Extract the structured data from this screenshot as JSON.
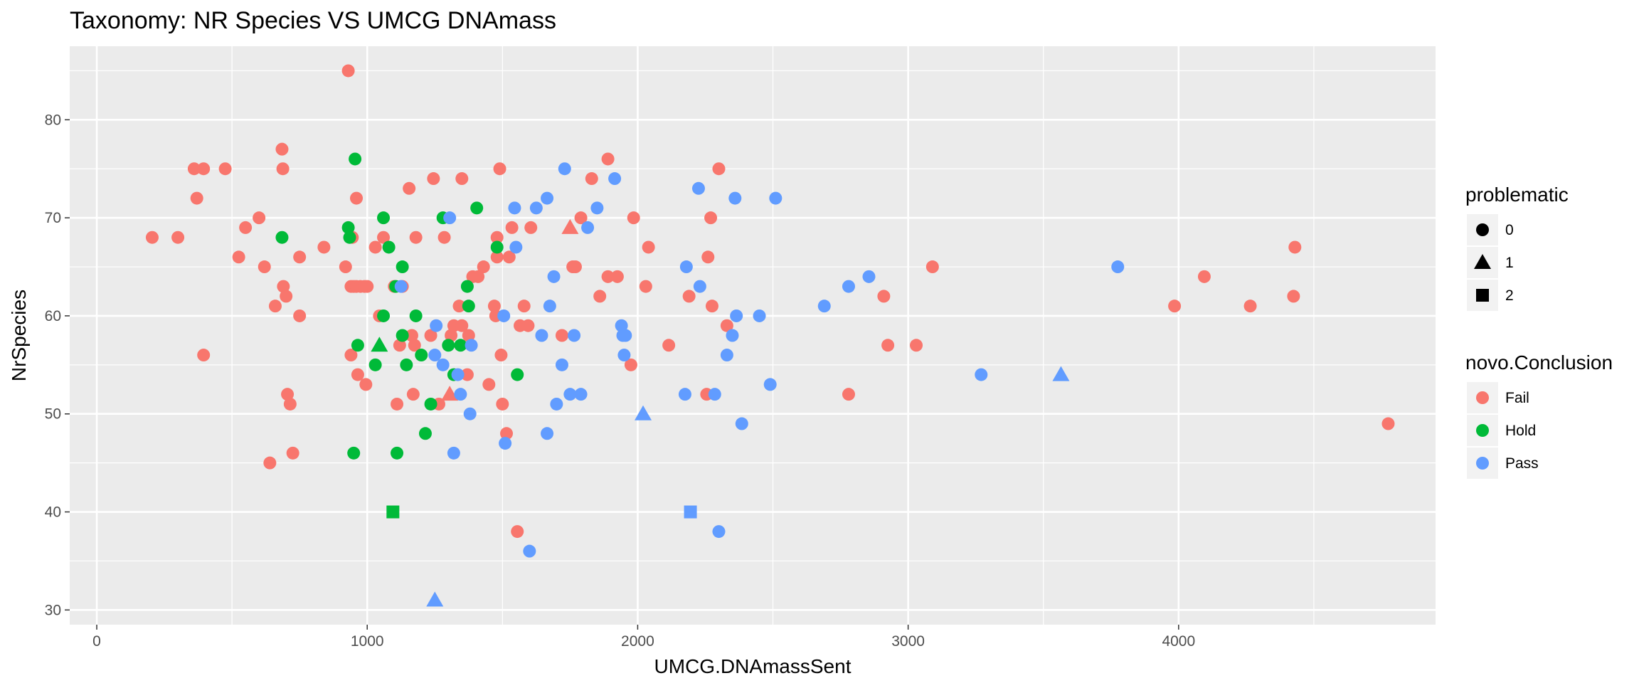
{
  "chart_data": {
    "type": "scatter",
    "title": "Taxonomy: NR Species VS UMCG DNAmass",
    "xlabel": "UMCG.DNAmassSent",
    "ylabel": "NrSpecies",
    "xlim": [
      -100,
      4950
    ],
    "ylim": [
      28.5,
      87.5
    ],
    "x_ticks": [
      0,
      1000,
      2000,
      3000,
      4000
    ],
    "y_ticks": [
      30,
      40,
      50,
      60,
      70,
      80
    ],
    "grid": true,
    "legend_placement": "right",
    "colors": {
      "Fail": "#F8766D",
      "Hold": "#00BA38",
      "Pass": "#619CFF",
      "panel": "#EBEBEB",
      "grid": "#FFFFFF"
    },
    "legends": [
      {
        "title": "problematic",
        "kind": "shape",
        "entries": [
          {
            "label": "0",
            "shape": "circle"
          },
          {
            "label": "1",
            "shape": "triangle"
          },
          {
            "label": "2",
            "shape": "square"
          }
        ]
      },
      {
        "title": "novo.Conclusion",
        "kind": "color",
        "entries": [
          {
            "label": "Fail"
          },
          {
            "label": "Hold"
          },
          {
            "label": "Pass"
          }
        ]
      }
    ],
    "points": [
      {
        "x": 930,
        "y": 85,
        "c": "Fail",
        "p": 0
      },
      {
        "x": 205,
        "y": 68,
        "c": "Fail",
        "p": 0
      },
      {
        "x": 300,
        "y": 68,
        "c": "Fail",
        "p": 0
      },
      {
        "x": 360,
        "y": 75,
        "c": "Fail",
        "p": 0
      },
      {
        "x": 395,
        "y": 75,
        "c": "Fail",
        "p": 0
      },
      {
        "x": 475,
        "y": 75,
        "c": "Fail",
        "p": 0
      },
      {
        "x": 370,
        "y": 72,
        "c": "Fail",
        "p": 0
      },
      {
        "x": 395,
        "y": 56,
        "c": "Fail",
        "p": 0
      },
      {
        "x": 525,
        "y": 66,
        "c": "Fail",
        "p": 0
      },
      {
        "x": 550,
        "y": 69,
        "c": "Fail",
        "p": 0
      },
      {
        "x": 600,
        "y": 70,
        "c": "Fail",
        "p": 0
      },
      {
        "x": 620,
        "y": 65,
        "c": "Fail",
        "p": 0
      },
      {
        "x": 640,
        "y": 45,
        "c": "Fail",
        "p": 0
      },
      {
        "x": 660,
        "y": 61,
        "c": "Fail",
        "p": 0
      },
      {
        "x": 685,
        "y": 77,
        "c": "Fail",
        "p": 0
      },
      {
        "x": 688,
        "y": 75,
        "c": "Fail",
        "p": 0
      },
      {
        "x": 690,
        "y": 63,
        "c": "Fail",
        "p": 0
      },
      {
        "x": 700,
        "y": 62,
        "c": "Fail",
        "p": 0
      },
      {
        "x": 705,
        "y": 52,
        "c": "Fail",
        "p": 0
      },
      {
        "x": 715,
        "y": 51,
        "c": "Fail",
        "p": 0
      },
      {
        "x": 725,
        "y": 46,
        "c": "Fail",
        "p": 0
      },
      {
        "x": 750,
        "y": 66,
        "c": "Fail",
        "p": 0
      },
      {
        "x": 750,
        "y": 60,
        "c": "Fail",
        "p": 0
      },
      {
        "x": 840,
        "y": 67,
        "c": "Fail",
        "p": 0
      },
      {
        "x": 920,
        "y": 65,
        "c": "Fail",
        "p": 0
      },
      {
        "x": 940,
        "y": 63,
        "c": "Fail",
        "p": 0
      },
      {
        "x": 950,
        "y": 63,
        "c": "Fail",
        "p": 0
      },
      {
        "x": 960,
        "y": 63,
        "c": "Fail",
        "p": 0
      },
      {
        "x": 975,
        "y": 63,
        "c": "Fail",
        "p": 0
      },
      {
        "x": 990,
        "y": 63,
        "c": "Fail",
        "p": 0
      },
      {
        "x": 1000,
        "y": 63,
        "c": "Fail",
        "p": 0
      },
      {
        "x": 945,
        "y": 68,
        "c": "Fail",
        "p": 0
      },
      {
        "x": 960,
        "y": 72,
        "c": "Fail",
        "p": 0
      },
      {
        "x": 940,
        "y": 56,
        "c": "Fail",
        "p": 0
      },
      {
        "x": 965,
        "y": 54,
        "c": "Fail",
        "p": 0
      },
      {
        "x": 995,
        "y": 53,
        "c": "Fail",
        "p": 0
      },
      {
        "x": 1030,
        "y": 67,
        "c": "Fail",
        "p": 0
      },
      {
        "x": 1045,
        "y": 60,
        "c": "Fail",
        "p": 0
      },
      {
        "x": 1060,
        "y": 68,
        "c": "Fail",
        "p": 0
      },
      {
        "x": 1100,
        "y": 63,
        "c": "Fail",
        "p": 0
      },
      {
        "x": 1110,
        "y": 51,
        "c": "Fail",
        "p": 0
      },
      {
        "x": 1120,
        "y": 57,
        "c": "Fail",
        "p": 0
      },
      {
        "x": 1130,
        "y": 63,
        "c": "Fail",
        "p": 0
      },
      {
        "x": 1155,
        "y": 73,
        "c": "Fail",
        "p": 0
      },
      {
        "x": 1165,
        "y": 58,
        "c": "Fail",
        "p": 0
      },
      {
        "x": 1170,
        "y": 52,
        "c": "Fail",
        "p": 0
      },
      {
        "x": 1175,
        "y": 57,
        "c": "Fail",
        "p": 0
      },
      {
        "x": 1180,
        "y": 68,
        "c": "Fail",
        "p": 0
      },
      {
        "x": 1235,
        "y": 58,
        "c": "Fail",
        "p": 0
      },
      {
        "x": 1245,
        "y": 74,
        "c": "Fail",
        "p": 0
      },
      {
        "x": 1265,
        "y": 51,
        "c": "Fail",
        "p": 0
      },
      {
        "x": 1285,
        "y": 68,
        "c": "Fail",
        "p": 0
      },
      {
        "x": 1310,
        "y": 58,
        "c": "Fail",
        "p": 0
      },
      {
        "x": 1320,
        "y": 59,
        "c": "Fail",
        "p": 0
      },
      {
        "x": 1340,
        "y": 61,
        "c": "Fail",
        "p": 0
      },
      {
        "x": 1350,
        "y": 59,
        "c": "Fail",
        "p": 0
      },
      {
        "x": 1350,
        "y": 74,
        "c": "Fail",
        "p": 0
      },
      {
        "x": 1375,
        "y": 58,
        "c": "Fail",
        "p": 0
      },
      {
        "x": 1370,
        "y": 54,
        "c": "Fail",
        "p": 0
      },
      {
        "x": 1390,
        "y": 64,
        "c": "Fail",
        "p": 0
      },
      {
        "x": 1410,
        "y": 64,
        "c": "Fail",
        "p": 0
      },
      {
        "x": 1430,
        "y": 65,
        "c": "Fail",
        "p": 0
      },
      {
        "x": 1450,
        "y": 53,
        "c": "Fail",
        "p": 0
      },
      {
        "x": 1470,
        "y": 61,
        "c": "Fail",
        "p": 0
      },
      {
        "x": 1475,
        "y": 60,
        "c": "Fail",
        "p": 0
      },
      {
        "x": 1480,
        "y": 66,
        "c": "Fail",
        "p": 0
      },
      {
        "x": 1480,
        "y": 68,
        "c": "Fail",
        "p": 0
      },
      {
        "x": 1490,
        "y": 75,
        "c": "Fail",
        "p": 0
      },
      {
        "x": 1495,
        "y": 56,
        "c": "Fail",
        "p": 0
      },
      {
        "x": 1500,
        "y": 51,
        "c": "Fail",
        "p": 0
      },
      {
        "x": 1515,
        "y": 48,
        "c": "Fail",
        "p": 0
      },
      {
        "x": 1525,
        "y": 66,
        "c": "Fail",
        "p": 0
      },
      {
        "x": 1535,
        "y": 69,
        "c": "Fail",
        "p": 0
      },
      {
        "x": 1555,
        "y": 38,
        "c": "Fail",
        "p": 0
      },
      {
        "x": 1565,
        "y": 59,
        "c": "Fail",
        "p": 0
      },
      {
        "x": 1580,
        "y": 61,
        "c": "Fail",
        "p": 0
      },
      {
        "x": 1595,
        "y": 59,
        "c": "Fail",
        "p": 0
      },
      {
        "x": 1605,
        "y": 69,
        "c": "Fail",
        "p": 0
      },
      {
        "x": 1720,
        "y": 58,
        "c": "Fail",
        "p": 0
      },
      {
        "x": 1760,
        "y": 65,
        "c": "Fail",
        "p": 0
      },
      {
        "x": 1770,
        "y": 65,
        "c": "Fail",
        "p": 0
      },
      {
        "x": 1790,
        "y": 70,
        "c": "Fail",
        "p": 0
      },
      {
        "x": 1830,
        "y": 74,
        "c": "Fail",
        "p": 0
      },
      {
        "x": 1860,
        "y": 62,
        "c": "Fail",
        "p": 0
      },
      {
        "x": 1890,
        "y": 76,
        "c": "Fail",
        "p": 0
      },
      {
        "x": 1890,
        "y": 64,
        "c": "Fail",
        "p": 0
      },
      {
        "x": 1925,
        "y": 64,
        "c": "Fail",
        "p": 0
      },
      {
        "x": 1975,
        "y": 55,
        "c": "Fail",
        "p": 0
      },
      {
        "x": 1985,
        "y": 70,
        "c": "Fail",
        "p": 0
      },
      {
        "x": 2030,
        "y": 63,
        "c": "Fail",
        "p": 0
      },
      {
        "x": 2040,
        "y": 67,
        "c": "Fail",
        "p": 0
      },
      {
        "x": 2115,
        "y": 57,
        "c": "Fail",
        "p": 0
      },
      {
        "x": 2190,
        "y": 62,
        "c": "Fail",
        "p": 0
      },
      {
        "x": 2255,
        "y": 52,
        "c": "Fail",
        "p": 0
      },
      {
        "x": 2260,
        "y": 66,
        "c": "Fail",
        "p": 0
      },
      {
        "x": 2270,
        "y": 70,
        "c": "Fail",
        "p": 0
      },
      {
        "x": 2275,
        "y": 61,
        "c": "Fail",
        "p": 0
      },
      {
        "x": 2300,
        "y": 75,
        "c": "Fail",
        "p": 0
      },
      {
        "x": 2330,
        "y": 59,
        "c": "Fail",
        "p": 0
      },
      {
        "x": 2780,
        "y": 52,
        "c": "Fail",
        "p": 0
      },
      {
        "x": 2910,
        "y": 62,
        "c": "Fail",
        "p": 0
      },
      {
        "x": 2925,
        "y": 57,
        "c": "Fail",
        "p": 0
      },
      {
        "x": 3030,
        "y": 57,
        "c": "Fail",
        "p": 0
      },
      {
        "x": 3090,
        "y": 65,
        "c": "Fail",
        "p": 0
      },
      {
        "x": 3985,
        "y": 61,
        "c": "Fail",
        "p": 0
      },
      {
        "x": 4095,
        "y": 64,
        "c": "Fail",
        "p": 0
      },
      {
        "x": 4265,
        "y": 61,
        "c": "Fail",
        "p": 0
      },
      {
        "x": 4425,
        "y": 62,
        "c": "Fail",
        "p": 0
      },
      {
        "x": 4430,
        "y": 67,
        "c": "Fail",
        "p": 0
      },
      {
        "x": 4775,
        "y": 49,
        "c": "Fail",
        "p": 0
      },
      {
        "x": 1750,
        "y": 69,
        "c": "Fail",
        "p": 1
      },
      {
        "x": 1305,
        "y": 52,
        "c": "Fail",
        "p": 1
      },
      {
        "x": 685,
        "y": 68,
        "c": "Hold",
        "p": 0
      },
      {
        "x": 930,
        "y": 69,
        "c": "Hold",
        "p": 0
      },
      {
        "x": 935,
        "y": 68,
        "c": "Hold",
        "p": 0
      },
      {
        "x": 955,
        "y": 76,
        "c": "Hold",
        "p": 0
      },
      {
        "x": 965,
        "y": 57,
        "c": "Hold",
        "p": 0
      },
      {
        "x": 950,
        "y": 46,
        "c": "Hold",
        "p": 0
      },
      {
        "x": 1030,
        "y": 55,
        "c": "Hold",
        "p": 0
      },
      {
        "x": 1060,
        "y": 70,
        "c": "Hold",
        "p": 0
      },
      {
        "x": 1060,
        "y": 60,
        "c": "Hold",
        "p": 0
      },
      {
        "x": 1080,
        "y": 67,
        "c": "Hold",
        "p": 0
      },
      {
        "x": 1105,
        "y": 63,
        "c": "Hold",
        "p": 0
      },
      {
        "x": 1110,
        "y": 46,
        "c": "Hold",
        "p": 0
      },
      {
        "x": 1130,
        "y": 58,
        "c": "Hold",
        "p": 0
      },
      {
        "x": 1130,
        "y": 65,
        "c": "Hold",
        "p": 0
      },
      {
        "x": 1145,
        "y": 55,
        "c": "Hold",
        "p": 0
      },
      {
        "x": 1180,
        "y": 60,
        "c": "Hold",
        "p": 0
      },
      {
        "x": 1200,
        "y": 56,
        "c": "Hold",
        "p": 0
      },
      {
        "x": 1215,
        "y": 48,
        "c": "Hold",
        "p": 0
      },
      {
        "x": 1235,
        "y": 51,
        "c": "Hold",
        "p": 0
      },
      {
        "x": 1280,
        "y": 70,
        "c": "Hold",
        "p": 0
      },
      {
        "x": 1300,
        "y": 57,
        "c": "Hold",
        "p": 0
      },
      {
        "x": 1320,
        "y": 54,
        "c": "Hold",
        "p": 0
      },
      {
        "x": 1345,
        "y": 57,
        "c": "Hold",
        "p": 0
      },
      {
        "x": 1370,
        "y": 63,
        "c": "Hold",
        "p": 0
      },
      {
        "x": 1375,
        "y": 61,
        "c": "Hold",
        "p": 0
      },
      {
        "x": 1405,
        "y": 71,
        "c": "Hold",
        "p": 0
      },
      {
        "x": 1480,
        "y": 67,
        "c": "Hold",
        "p": 0
      },
      {
        "x": 1555,
        "y": 54,
        "c": "Hold",
        "p": 0
      },
      {
        "x": 1045,
        "y": 57,
        "c": "Hold",
        "p": 1
      },
      {
        "x": 1095,
        "y": 40,
        "c": "Hold",
        "p": 2
      },
      {
        "x": 1125,
        "y": 63,
        "c": "Pass",
        "p": 0
      },
      {
        "x": 1250,
        "y": 56,
        "c": "Pass",
        "p": 0
      },
      {
        "x": 1255,
        "y": 59,
        "c": "Pass",
        "p": 0
      },
      {
        "x": 1280,
        "y": 55,
        "c": "Pass",
        "p": 0
      },
      {
        "x": 1305,
        "y": 70,
        "c": "Pass",
        "p": 0
      },
      {
        "x": 1320,
        "y": 46,
        "c": "Pass",
        "p": 0
      },
      {
        "x": 1335,
        "y": 54,
        "c": "Pass",
        "p": 0
      },
      {
        "x": 1345,
        "y": 52,
        "c": "Pass",
        "p": 0
      },
      {
        "x": 1380,
        "y": 50,
        "c": "Pass",
        "p": 0
      },
      {
        "x": 1385,
        "y": 57,
        "c": "Pass",
        "p": 0
      },
      {
        "x": 1505,
        "y": 60,
        "c": "Pass",
        "p": 0
      },
      {
        "x": 1510,
        "y": 47,
        "c": "Pass",
        "p": 0
      },
      {
        "x": 1545,
        "y": 71,
        "c": "Pass",
        "p": 0
      },
      {
        "x": 1550,
        "y": 67,
        "c": "Pass",
        "p": 0
      },
      {
        "x": 1600,
        "y": 36,
        "c": "Pass",
        "p": 0
      },
      {
        "x": 1625,
        "y": 71,
        "c": "Pass",
        "p": 0
      },
      {
        "x": 1645,
        "y": 58,
        "c": "Pass",
        "p": 0
      },
      {
        "x": 1665,
        "y": 72,
        "c": "Pass",
        "p": 0
      },
      {
        "x": 1665,
        "y": 48,
        "c": "Pass",
        "p": 0
      },
      {
        "x": 1675,
        "y": 61,
        "c": "Pass",
        "p": 0
      },
      {
        "x": 1690,
        "y": 64,
        "c": "Pass",
        "p": 0
      },
      {
        "x": 1700,
        "y": 51,
        "c": "Pass",
        "p": 0
      },
      {
        "x": 1720,
        "y": 55,
        "c": "Pass",
        "p": 0
      },
      {
        "x": 1730,
        "y": 75,
        "c": "Pass",
        "p": 0
      },
      {
        "x": 1750,
        "y": 52,
        "c": "Pass",
        "p": 0
      },
      {
        "x": 1765,
        "y": 58,
        "c": "Pass",
        "p": 0
      },
      {
        "x": 1790,
        "y": 52,
        "c": "Pass",
        "p": 0
      },
      {
        "x": 1815,
        "y": 69,
        "c": "Pass",
        "p": 0
      },
      {
        "x": 1850,
        "y": 71,
        "c": "Pass",
        "p": 0
      },
      {
        "x": 1915,
        "y": 74,
        "c": "Pass",
        "p": 0
      },
      {
        "x": 1940,
        "y": 59,
        "c": "Pass",
        "p": 0
      },
      {
        "x": 1945,
        "y": 58,
        "c": "Pass",
        "p": 0
      },
      {
        "x": 1950,
        "y": 56,
        "c": "Pass",
        "p": 0
      },
      {
        "x": 1955,
        "y": 58,
        "c": "Pass",
        "p": 0
      },
      {
        "x": 2175,
        "y": 52,
        "c": "Pass",
        "p": 0
      },
      {
        "x": 2180,
        "y": 65,
        "c": "Pass",
        "p": 0
      },
      {
        "x": 2225,
        "y": 73,
        "c": "Pass",
        "p": 0
      },
      {
        "x": 2230,
        "y": 63,
        "c": "Pass",
        "p": 0
      },
      {
        "x": 2285,
        "y": 52,
        "c": "Pass",
        "p": 0
      },
      {
        "x": 2300,
        "y": 38,
        "c": "Pass",
        "p": 0
      },
      {
        "x": 2330,
        "y": 56,
        "c": "Pass",
        "p": 0
      },
      {
        "x": 2350,
        "y": 58,
        "c": "Pass",
        "p": 0
      },
      {
        "x": 2360,
        "y": 72,
        "c": "Pass",
        "p": 0
      },
      {
        "x": 2365,
        "y": 60,
        "c": "Pass",
        "p": 0
      },
      {
        "x": 2385,
        "y": 49,
        "c": "Pass",
        "p": 0
      },
      {
        "x": 2450,
        "y": 60,
        "c": "Pass",
        "p": 0
      },
      {
        "x": 2490,
        "y": 53,
        "c": "Pass",
        "p": 0
      },
      {
        "x": 2510,
        "y": 72,
        "c": "Pass",
        "p": 0
      },
      {
        "x": 2690,
        "y": 61,
        "c": "Pass",
        "p": 0
      },
      {
        "x": 2780,
        "y": 63,
        "c": "Pass",
        "p": 0
      },
      {
        "x": 2855,
        "y": 64,
        "c": "Pass",
        "p": 0
      },
      {
        "x": 3270,
        "y": 54,
        "c": "Pass",
        "p": 0
      },
      {
        "x": 3775,
        "y": 65,
        "c": "Pass",
        "p": 0
      },
      {
        "x": 2020,
        "y": 50,
        "c": "Pass",
        "p": 1
      },
      {
        "x": 1250,
        "y": 31,
        "c": "Pass",
        "p": 1
      },
      {
        "x": 3565,
        "y": 54,
        "c": "Pass",
        "p": 1
      },
      {
        "x": 2195,
        "y": 40,
        "c": "Pass",
        "p": 2
      }
    ]
  }
}
